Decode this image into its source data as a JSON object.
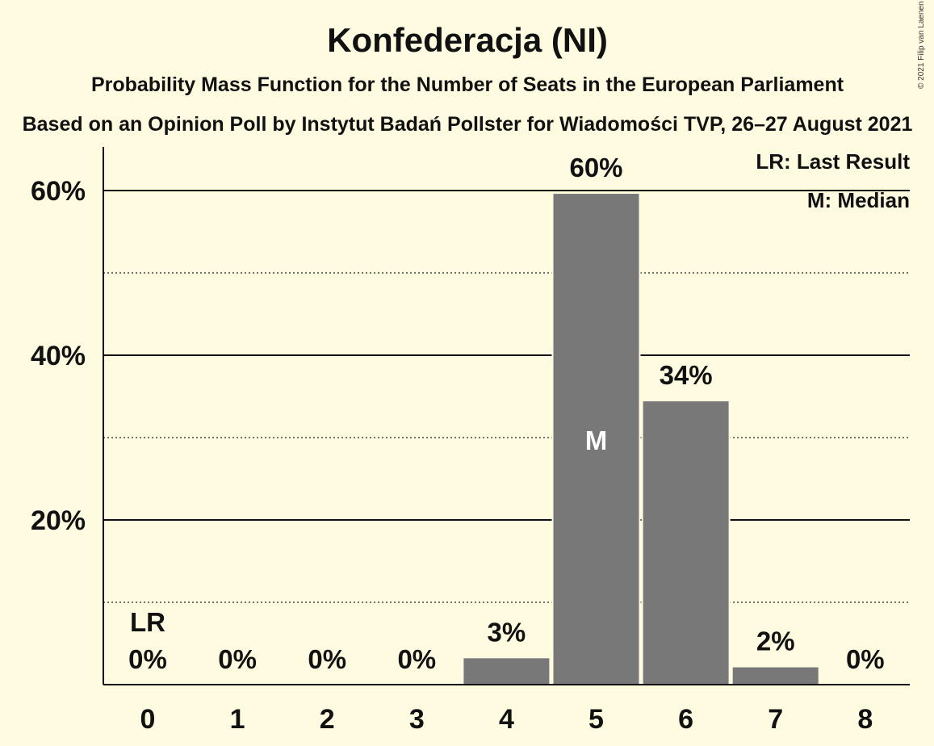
{
  "chart_data": {
    "type": "bar",
    "title": "Konfederacja (NI)",
    "subtitle": "Probability Mass Function for the Number of Seats in the European Parliament",
    "subtitle2": "Based on an Opinion Poll by Instytut Badań Pollster for Wiadomości TVP, 26–27 August 2021",
    "categories": [
      "0",
      "1",
      "2",
      "3",
      "4",
      "5",
      "6",
      "7",
      "8"
    ],
    "values": [
      0,
      0,
      0,
      0,
      3.3,
      59.7,
      34.5,
      2.2,
      0
    ],
    "value_labels": [
      "0%",
      "0%",
      "0%",
      "0%",
      "3%",
      "60%",
      "34%",
      "2%",
      "0%"
    ],
    "ylim": [
      0,
      65
    ],
    "y_ticks": [
      {
        "value": 20,
        "label": "20%"
      },
      {
        "value": 40,
        "label": "40%"
      },
      {
        "value": 60,
        "label": "60%"
      }
    ],
    "minor_gridlines": [
      10,
      30,
      50
    ],
    "last_result_category": "0",
    "last_result_marker": "LR",
    "median_category": "5",
    "median_marker": "M",
    "legend": [
      "LR: Last Result",
      "M: Median"
    ],
    "legend_position": "top-right",
    "grid": true,
    "bar_color": "#787878",
    "copyright": "© 2021 Filip van Laenen"
  }
}
